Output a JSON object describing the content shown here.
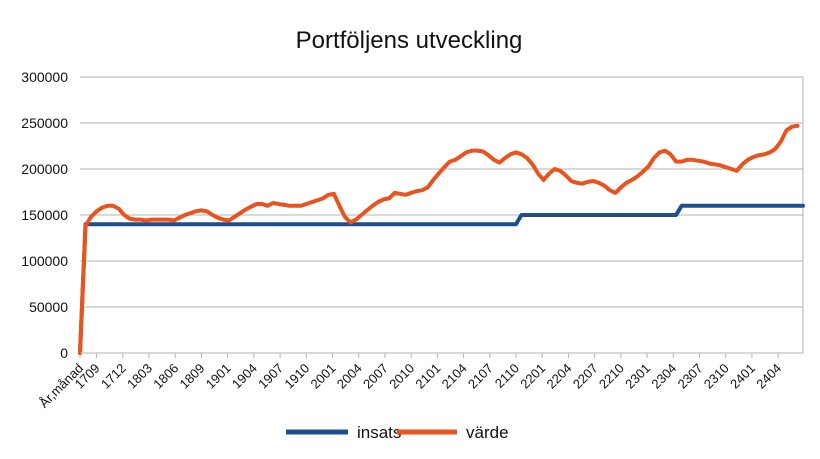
{
  "chart_data": {
    "type": "line",
    "title": "Portföljens utveckling",
    "xlabel": "",
    "ylabel": "",
    "ylim": [
      0,
      300000
    ],
    "yticks": [
      0,
      50000,
      100000,
      150000,
      200000,
      250000,
      300000
    ],
    "ytick_labels": [
      "0",
      "50000",
      "100000",
      "150000",
      "200000",
      "250000",
      "300000"
    ],
    "grid": "horizontal",
    "legend": "bottom",
    "xtick_labels": [
      "År,månad",
      "1709",
      "1712",
      "1803",
      "1806",
      "1809",
      "1901",
      "1904",
      "1907",
      "1910",
      "2001",
      "2004",
      "2007",
      "2010",
      "2101",
      "2104",
      "2107",
      "2110",
      "2201",
      "2204",
      "2207",
      "2210",
      "2301",
      "2304",
      "2307",
      "2310",
      "2401",
      "2404"
    ],
    "series": [
      {
        "name": "insats",
        "color": "#1F4E8C",
        "values": [
          0,
          140000,
          140000,
          140000,
          140000,
          140000,
          140000,
          140000,
          140000,
          140000,
          140000,
          140000,
          140000,
          140000,
          140000,
          140000,
          140000,
          140000,
          140000,
          140000,
          140000,
          140000,
          140000,
          140000,
          140000,
          140000,
          140000,
          140000,
          140000,
          140000,
          140000,
          140000,
          140000,
          140000,
          140000,
          140000,
          140000,
          140000,
          140000,
          140000,
          140000,
          140000,
          140000,
          140000,
          140000,
          140000,
          140000,
          140000,
          140000,
          140000,
          140000,
          140000,
          140000,
          140000,
          140000,
          140000,
          140000,
          140000,
          140000,
          140000,
          140000,
          140000,
          140000,
          140000,
          140000,
          140000,
          140000,
          140000,
          140000,
          140000,
          140000,
          140000,
          140000,
          140000,
          140000,
          140000,
          140000,
          140000,
          140000,
          140000,
          150000,
          150000,
          150000,
          150000,
          150000,
          150000,
          150000,
          150000,
          150000,
          150000,
          150000,
          150000,
          150000,
          150000,
          150000,
          150000,
          150000,
          150000,
          150000,
          150000,
          150000,
          150000,
          150000,
          150000,
          150000,
          150000,
          150000,
          150000,
          150000,
          160000,
          160000,
          160000,
          160000,
          160000,
          160000,
          160000,
          160000,
          160000,
          160000,
          160000,
          160000,
          160000,
          160000,
          160000,
          160000,
          160000,
          160000,
          160000,
          160000,
          160000,
          160000,
          160000
        ]
      },
      {
        "name": "värde",
        "color": "#E8531E",
        "values": [
          0,
          138000,
          148000,
          154000,
          158000,
          160000,
          160000,
          157000,
          150000,
          146000,
          145000,
          145000,
          144000,
          145000,
          145000,
          145000,
          145000,
          144000,
          147000,
          150000,
          152000,
          154000,
          155000,
          154000,
          150000,
          147000,
          145000,
          144000,
          148000,
          152000,
          156000,
          159000,
          162000,
          162000,
          160000,
          163000,
          162000,
          161000,
          160000,
          160000,
          160000,
          162000,
          164000,
          166000,
          168000,
          172000,
          173000,
          160000,
          148000,
          142000,
          145000,
          150000,
          155000,
          160000,
          164000,
          167000,
          168000,
          174000,
          173000,
          172000,
          174000,
          176000,
          177000,
          180000,
          188000,
          195000,
          202000,
          208000,
          210000,
          214000,
          218000,
          220000,
          220000,
          219000,
          215000,
          210000,
          207000,
          212000,
          216000,
          218000,
          216000,
          212000,
          205000,
          195000,
          188000,
          195000,
          200000,
          198000,
          193000,
          187000,
          185000,
          184000,
          186000,
          187000,
          185000,
          182000,
          177000,
          174000,
          180000,
          185000,
          188000,
          192000,
          197000,
          203000,
          212000,
          218000,
          220000,
          216000,
          208000,
          208000,
          210000,
          210000,
          209000,
          208000,
          206000,
          205000,
          204000,
          202000,
          200000,
          198000,
          205000,
          210000,
          213000,
          215000,
          216000,
          218000,
          222000,
          230000,
          242000,
          246000,
          247000
        ]
      }
    ]
  }
}
